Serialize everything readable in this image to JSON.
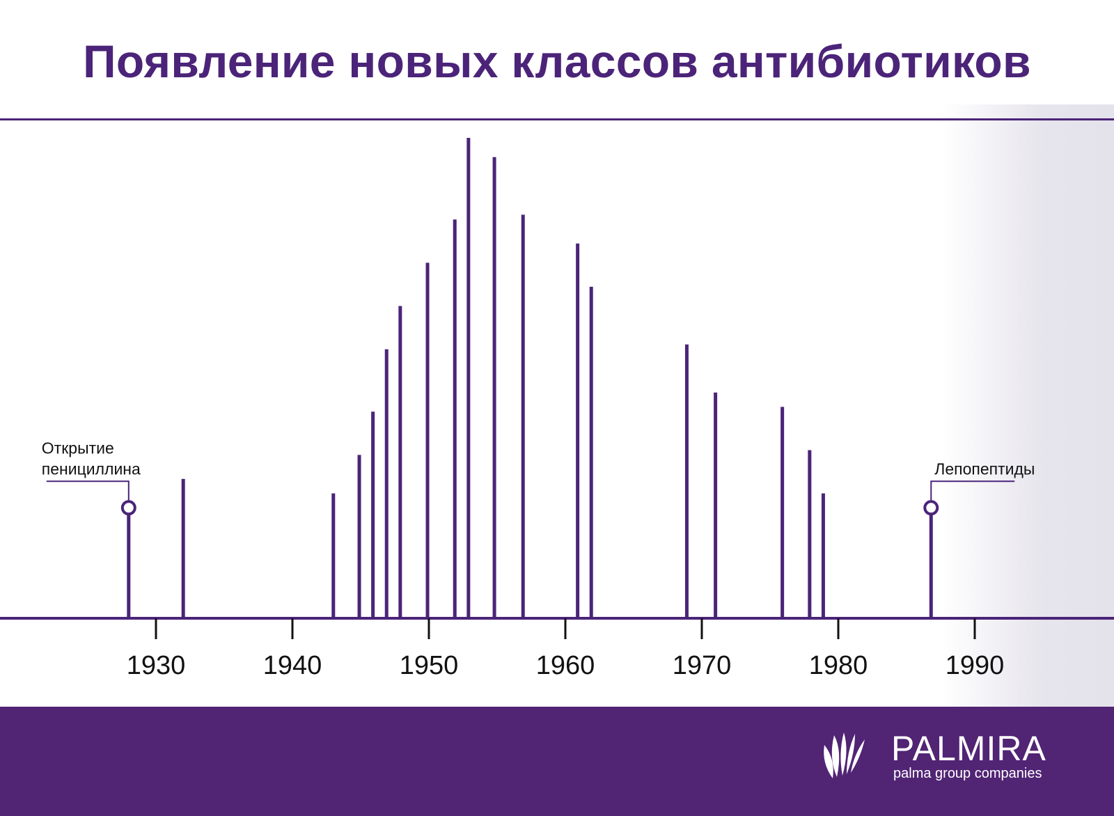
{
  "title": "Появление новых классов антибиотиков",
  "colors": {
    "accent": "#4b2479",
    "footer": "#512474",
    "fade": "#e6e4ec"
  },
  "chart_data": {
    "type": "bar",
    "title": "Появление новых классов антибиотиков",
    "xlabel": "",
    "ylabel": "",
    "x_ticks": [
      1930,
      1940,
      1950,
      1960,
      1970,
      1980,
      1990
    ],
    "xlim": [
      1920,
      1995
    ],
    "grid": false,
    "series": [
      {
        "values": [
          {
            "x": 1928.0,
            "y": 0.23
          },
          {
            "x": 1932.0,
            "y": 0.29
          },
          {
            "x": 1943.0,
            "y": 0.26
          },
          {
            "x": 1944.9,
            "y": 0.34
          },
          {
            "x": 1945.9,
            "y": 0.43
          },
          {
            "x": 1946.9,
            "y": 0.56
          },
          {
            "x": 1947.9,
            "y": 0.65
          },
          {
            "x": 1949.9,
            "y": 0.74
          },
          {
            "x": 1951.9,
            "y": 0.83
          },
          {
            "x": 1952.9,
            "y": 1.0
          },
          {
            "x": 1954.8,
            "y": 0.96
          },
          {
            "x": 1956.9,
            "y": 0.84
          },
          {
            "x": 1960.9,
            "y": 0.78
          },
          {
            "x": 1961.9,
            "y": 0.69
          },
          {
            "x": 1968.9,
            "y": 0.57
          },
          {
            "x": 1971.0,
            "y": 0.47
          },
          {
            "x": 1975.9,
            "y": 0.44
          },
          {
            "x": 1977.9,
            "y": 0.35
          },
          {
            "x": 1978.9,
            "y": 0.26
          },
          {
            "x": 1986.8,
            "y": 0.23
          }
        ]
      }
    ],
    "annotations": [
      {
        "lines": [
          "Открытие",
          "пенициллина"
        ],
        "x": 1928.0,
        "side": "left"
      },
      {
        "lines": [
          "Лепопептиды"
        ],
        "x": 1986.8,
        "side": "right"
      }
    ]
  },
  "logo": {
    "name": "PALMIRA",
    "tagline": "palma group companies"
  }
}
